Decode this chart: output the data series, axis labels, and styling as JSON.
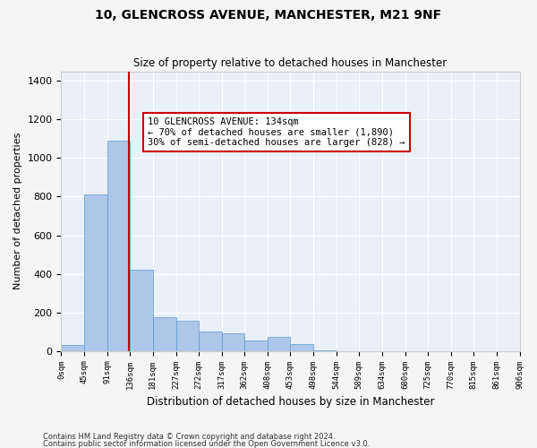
{
  "title": "10, GLENCROSS AVENUE, MANCHESTER, M21 9NF",
  "subtitle": "Size of property relative to detached houses in Manchester",
  "xlabel": "Distribution of detached houses by size in Manchester",
  "ylabel": "Number of detached properties",
  "bar_color": "#aec6e8",
  "bar_edge_color": "#5b9bd5",
  "background_color": "#eaf0f8",
  "grid_color": "#ffffff",
  "vline_x": 134,
  "vline_color": "#cc0000",
  "annotation_text": "10 GLENCROSS AVENUE: 134sqm\n← 70% of detached houses are smaller (1,890)\n30% of semi-detached houses are larger (828) →",
  "annotation_box_color": "#cc0000",
  "footnote1": "Contains HM Land Registry data © Crown copyright and database right 2024.",
  "footnote2": "Contains public sector information licensed under the Open Government Licence v3.0.",
  "ylim": [
    0,
    1450
  ],
  "yticks": [
    0,
    200,
    400,
    600,
    800,
    1000,
    1200,
    1400
  ],
  "bin_edges": [
    0,
    45,
    91,
    136,
    181,
    227,
    272,
    317,
    362,
    408,
    453,
    498,
    544,
    589,
    634,
    680,
    725,
    770,
    815,
    861,
    906
  ],
  "bin_counts": [
    30,
    810,
    1090,
    420,
    175,
    155,
    100,
    90,
    55,
    75,
    35,
    5,
    0,
    0,
    0,
    0,
    0,
    0,
    0,
    0
  ]
}
